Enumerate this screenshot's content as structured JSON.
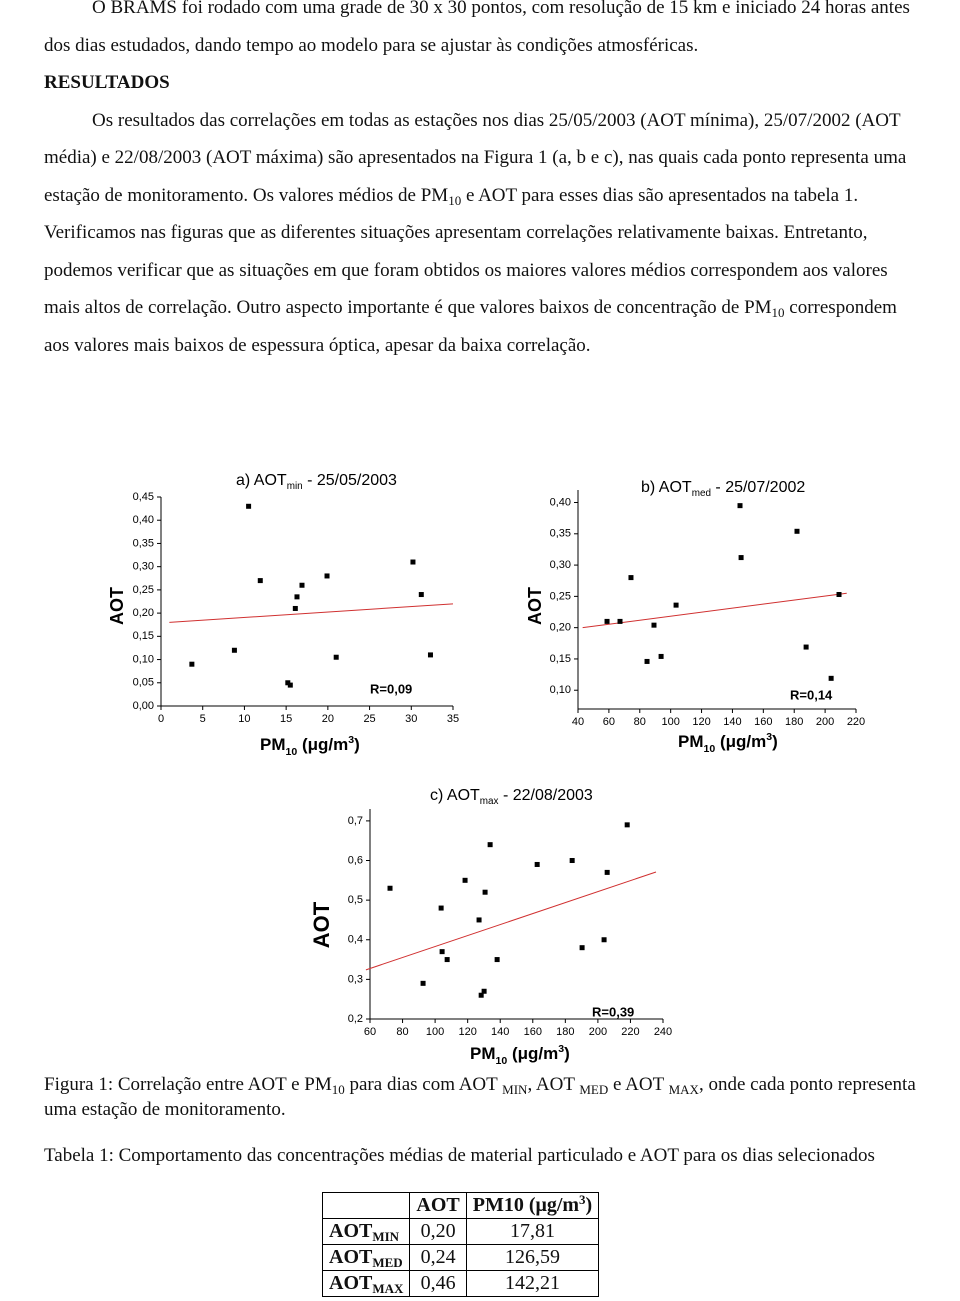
{
  "paragraphs": [
    [
      "O BRAMS foi rodado com uma grade de 30 x 30 pontos, com resolução de 15 km e iniciado 24 horas antes dos dias estudados, dando tempo ao modelo para se ajustar às condições atmosféricas."
    ],
    [
      "Os resultados das correlações em todas as estações nos dias 25/05/2003 (AOT mínima), 25/07/2002 (AOT média) e 22/08/2003 (AOT máxima) são apresentados na Figura 1 (a, b e c), nas quais cada ponto representa uma estação de monitoramento. Os valores médios de PM",
      "10",
      " e AOT para esses dias são apresentados na tabela 1. Verificamos nas figuras que as diferentes situações apresentam correlações relativamente baixas. Entretanto, podemos verificar que as situações em que foram obtidos os maiores valores médios correspondem aos valores mais altos de correlação. Outro aspecto importante é que valores baixos de concentração de PM",
      "10",
      " correspondem aos valores mais baixos de espessura óptica, apesar da baixa correlação."
    ]
  ],
  "heading": "RESULTADOS",
  "chart_data": [
    {
      "type": "scatter",
      "title": [
        "a) AOT",
        "min",
        " - 25/05/2003"
      ],
      "ylabel": "AOT",
      "xlabel": [
        "PM",
        "10",
        " (μg/m",
        "3",
        ")"
      ],
      "annotation": "R=0,09",
      "xlim": [
        0,
        35
      ],
      "xticks": [
        0,
        5,
        10,
        15,
        20,
        25,
        30,
        35
      ],
      "ylim": [
        0,
        0.45
      ],
      "yticks": [
        {
          "value": 0,
          "label": "0,00"
        },
        {
          "value": 0.05,
          "label": "0,05"
        },
        {
          "value": 0.1,
          "label": "0,10"
        },
        {
          "value": 0.15,
          "label": "0,15"
        },
        {
          "value": 0.2,
          "label": "0,20"
        },
        {
          "value": 0.25,
          "label": "0,25"
        },
        {
          "value": 0.3,
          "label": "0,30"
        },
        {
          "value": 0.35,
          "label": "0,35"
        },
        {
          "value": 0.4,
          "label": "0,40"
        },
        {
          "value": 0.45,
          "label": "0,45"
        }
      ],
      "color": "#000000",
      "x": [
        10.5,
        11.9,
        8.8,
        3.7,
        15.2,
        15.5,
        16.1,
        16.3,
        16.9,
        19.9,
        21.0,
        30.2,
        31.2,
        32.3
      ],
      "values": [
        0.43,
        0.27,
        0.12,
        0.09,
        0.05,
        0.045,
        0.21,
        0.235,
        0.26,
        0.28,
        0.105,
        0.31,
        0.24,
        0.11
      ],
      "trendline": {
        "color": "#d03030",
        "x": [
          1,
          35
        ],
        "values": [
          0.18,
          0.22
        ]
      }
    },
    {
      "type": "scatter",
      "title": [
        "b) AOT",
        "med",
        " - 25/07/2002"
      ],
      "ylabel": "AOT",
      "xlabel": [
        "PM",
        "10",
        " (μg/m",
        "3",
        ")"
      ],
      "annotation": "R=0,14",
      "xlim": [
        40,
        220
      ],
      "xticks": [
        40,
        60,
        80,
        100,
        120,
        140,
        160,
        180,
        200,
        220
      ],
      "ylim": [
        0.07,
        0.42
      ],
      "yticks": [
        {
          "value": 0.1,
          "label": "0,10"
        },
        {
          "value": 0.15,
          "label": "0,15"
        },
        {
          "value": 0.2,
          "label": "0,20"
        },
        {
          "value": 0.25,
          "label": "0,25"
        },
        {
          "value": 0.3,
          "label": "0,30"
        },
        {
          "value": 0.35,
          "label": "0,35"
        },
        {
          "value": 0.4,
          "label": "0,40"
        }
      ],
      "color": "#000000",
      "x": [
        58.8,
        67.2,
        74.3,
        84.7,
        89.2,
        93.8,
        103.5,
        144.9,
        145.6,
        181.8,
        187.7,
        203.9,
        209.0
      ],
      "values": [
        0.21,
        0.21,
        0.28,
        0.146,
        0.204,
        0.154,
        0.236,
        0.395,
        0.312,
        0.354,
        0.169,
        0.119,
        0.253
      ],
      "trendline": {
        "color": "#d03030",
        "x": [
          43,
          214
        ],
        "values": [
          0.2,
          0.255
        ]
      }
    },
    {
      "type": "scatter",
      "title": [
        "c) AOT",
        "max",
        " - 22/08/2003"
      ],
      "ylabel": "AOT",
      "xlabel": [
        "PM",
        "10",
        " (μg/m",
        "3",
        ")"
      ],
      "annotation": "R=0,39",
      "xlim": [
        60,
        240
      ],
      "xticks": [
        60,
        80,
        100,
        120,
        140,
        160,
        180,
        200,
        220,
        240
      ],
      "ylim": [
        0.2,
        0.73
      ],
      "yticks": [
        {
          "value": 0.2,
          "label": "0,2"
        },
        {
          "value": 0.3,
          "label": "0,3"
        },
        {
          "value": 0.4,
          "label": "0,4"
        },
        {
          "value": 0.5,
          "label": "0,5"
        },
        {
          "value": 0.6,
          "label": "0,6"
        },
        {
          "value": 0.7,
          "label": "0,7"
        }
      ],
      "color": "#000000",
      "x": [
        72.3,
        92.6,
        103.7,
        104.3,
        107.4,
        118.4,
        127.0,
        128.3,
        130.1,
        130.7,
        133.8,
        138.1,
        162.7,
        184.2,
        190.3,
        203.8,
        205.7,
        218.0
      ],
      "values": [
        0.53,
        0.29,
        0.48,
        0.37,
        0.35,
        0.55,
        0.45,
        0.26,
        0.27,
        0.52,
        0.64,
        0.35,
        0.59,
        0.6,
        0.38,
        0.4,
        0.57,
        0.69
      ],
      "trendline": {
        "color": "#d03030",
        "x": [
          57.5,
          235.7
        ],
        "values": [
          0.324,
          0.571
        ]
      }
    }
  ],
  "caption": [
    "Figura 1: Correlação entre AOT e PM",
    "10",
    " para dias com AOT ",
    "MIN",
    ", AOT ",
    "MED",
    " e AOT ",
    "MAX",
    ", onde cada ponto representa uma estação de monitoramento."
  ],
  "table_caption": "Tabela 1: Comportamento das concentrações médias de material particulado e AOT para os dias selecionados",
  "table": {
    "header": [
      [
        "AOT"
      ],
      [
        "PM10 (μg/m",
        "3",
        ")"
      ]
    ],
    "rows": [
      [
        [
          "AOT",
          "MIN"
        ],
        "0,20",
        "17,81"
      ],
      [
        [
          "AOT",
          "MED"
        ],
        "0,24",
        "126,59"
      ],
      [
        [
          "AOT",
          "MAX"
        ],
        "0,46",
        "142,21"
      ]
    ]
  }
}
